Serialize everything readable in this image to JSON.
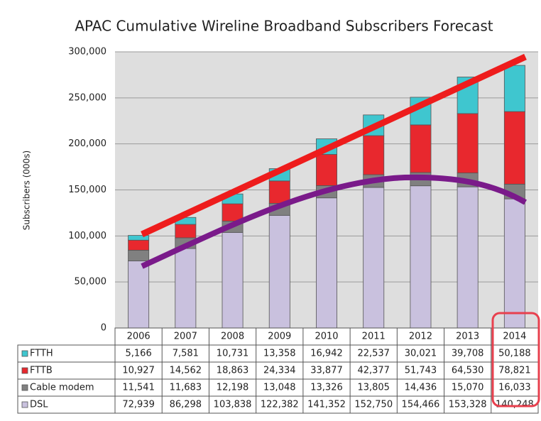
{
  "chart_data": {
    "type": "bar",
    "stacked": true,
    "title": "APAC Cumulative Wireline Broadband Subscribers Forecast",
    "y_label": "Subscribers (000s)",
    "categories": [
      "2006",
      "2007",
      "2008",
      "2009",
      "2010",
      "2011",
      "2012",
      "2013",
      "2014"
    ],
    "series": [
      {
        "name": "DSL",
        "color": "#c9c1de",
        "values": [
          72939,
          86298,
          103838,
          122382,
          141352,
          152750,
          154466,
          153328,
          140248
        ],
        "value_labels": [
          "72,939",
          "86,298",
          "103,838",
          "122,382",
          "141,352",
          "152,750",
          "154,466",
          "153,328",
          "140,248"
        ]
      },
      {
        "name": "Cable modem",
        "color": "#808080",
        "values": [
          11541,
          11683,
          12198,
          13048,
          13326,
          13805,
          14436,
          15070,
          16033
        ],
        "value_labels": [
          "11,541",
          "11,683",
          "12,198",
          "13,048",
          "13,326",
          "13,805",
          "14,436",
          "15,070",
          "16,033"
        ]
      },
      {
        "name": "FTTB",
        "color": "#e8282e",
        "values": [
          10927,
          14562,
          18863,
          24334,
          33877,
          42377,
          51743,
          64530,
          78821
        ],
        "value_labels": [
          "10,927",
          "14,562",
          "18,863",
          "24,334",
          "33,877",
          "42,377",
          "51,743",
          "64,530",
          "78,821"
        ]
      },
      {
        "name": "FTTH",
        "color": "#3fc6cf",
        "values": [
          5166,
          7581,
          10731,
          13358,
          16942,
          22537,
          30021,
          39708,
          50188
        ],
        "value_labels": [
          "5,166",
          "7,581",
          "10,731",
          "13,358",
          "16,942",
          "22,537",
          "30,021",
          "39,708",
          "50,188"
        ]
      }
    ],
    "ylim": [
      0,
      300000
    ],
    "yticks": [
      0,
      {
        "value": 50000,
        "label": "50,000"
      },
      {
        "value": 100000,
        "label": "100,000"
      },
      {
        "value": 150000,
        "label": "150,000"
      },
      {
        "value": 200000,
        "label": "200,000"
      },
      {
        "value": 250000,
        "label": "250,000"
      },
      {
        "value": 300000,
        "label": "300,000"
      }
    ],
    "grid": true
  }
}
